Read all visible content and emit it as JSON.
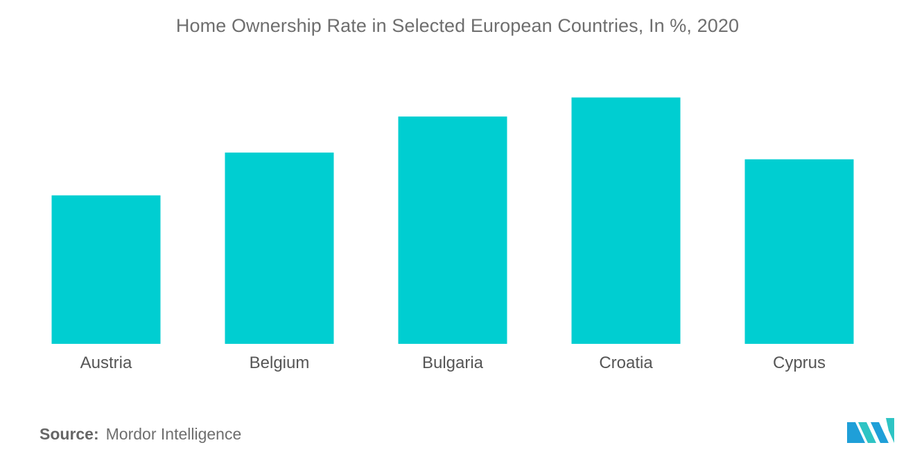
{
  "chart_data": {
    "type": "bar",
    "title": "Home Ownership Rate in Selected European Countries, In %, 2020",
    "xlabel": "",
    "ylabel": "",
    "categories": [
      "Austria",
      "Belgium",
      "Bulgaria",
      "Croatia",
      "Cyprus"
    ],
    "values": [
      55.2,
      71.1,
      84.5,
      91.6,
      68.6
    ],
    "ylim": [
      0,
      100
    ],
    "grid": false,
    "legend": "none",
    "bar_color": "#00ced1"
  },
  "source": {
    "label": "Source:",
    "text": "Mordor Intelligence"
  },
  "logo": {
    "icon": "mordor-intelligence-logo",
    "colors": [
      "#1f9fd8",
      "#2ec4c4"
    ]
  }
}
